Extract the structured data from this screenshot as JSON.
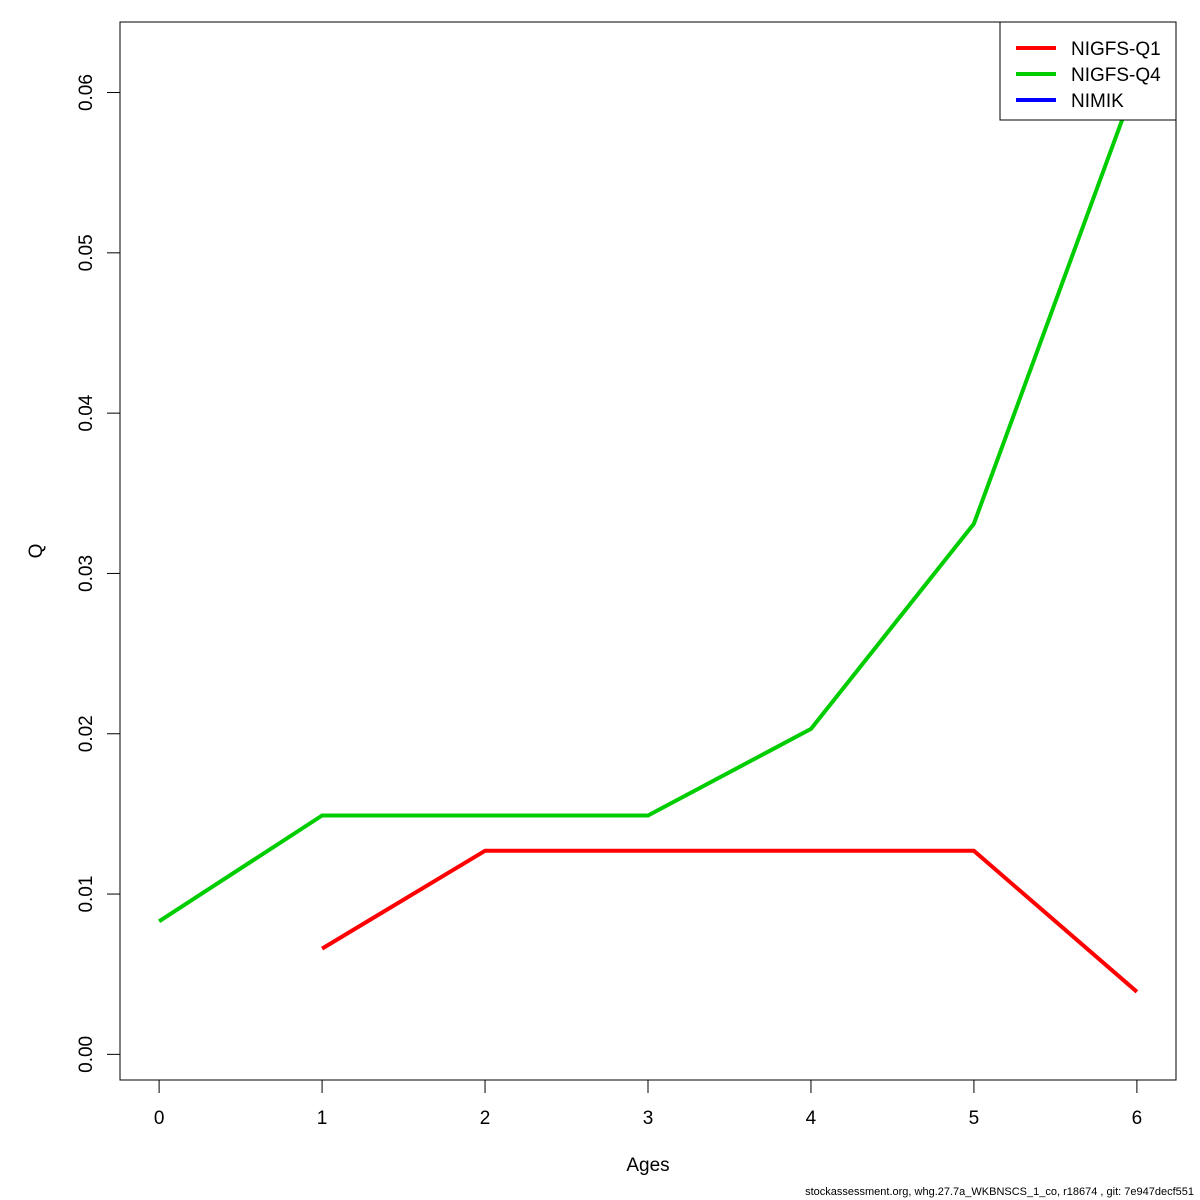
{
  "chart_data": {
    "type": "line",
    "title": "",
    "xlabel": "Ages",
    "ylabel": "Q",
    "xlim": [
      -0.24,
      6.24
    ],
    "ylim": [
      -0.0016,
      0.0644
    ],
    "x_ticks": [
      0,
      1,
      2,
      3,
      4,
      5,
      6
    ],
    "y_ticks": [
      0.0,
      0.01,
      0.02,
      0.03,
      0.04,
      0.05,
      0.06
    ],
    "y_tick_labels": [
      "0.00",
      "0.01",
      "0.02",
      "0.03",
      "0.04",
      "0.05",
      "0.06"
    ],
    "x_tick_labels": [
      "0",
      "1",
      "2",
      "3",
      "4",
      "5",
      "6"
    ],
    "grid": false,
    "legend_position": "top-right",
    "series": [
      {
        "name": "NIGFS-Q1",
        "color": "#ff0000",
        "x": [
          1,
          2,
          3,
          4,
          5,
          6
        ],
        "y": [
          0.0066,
          0.0127,
          0.0127,
          0.0127,
          0.0127,
          0.0039
        ]
      },
      {
        "name": "NIGFS-Q4",
        "color": "#00cd00",
        "x": [
          0,
          1,
          2,
          3,
          4,
          5,
          6
        ],
        "y": [
          0.0083,
          0.0149,
          0.0149,
          0.0149,
          0.0203,
          0.0331,
          0.0608
        ]
      },
      {
        "name": "NIMIK",
        "color": "#0000ff",
        "x": [],
        "y": []
      }
    ]
  },
  "footer_text": "stockassessment.org, whg.27.7a_WKBNSCS_1_co, r18674 , git: 7e947decf551"
}
